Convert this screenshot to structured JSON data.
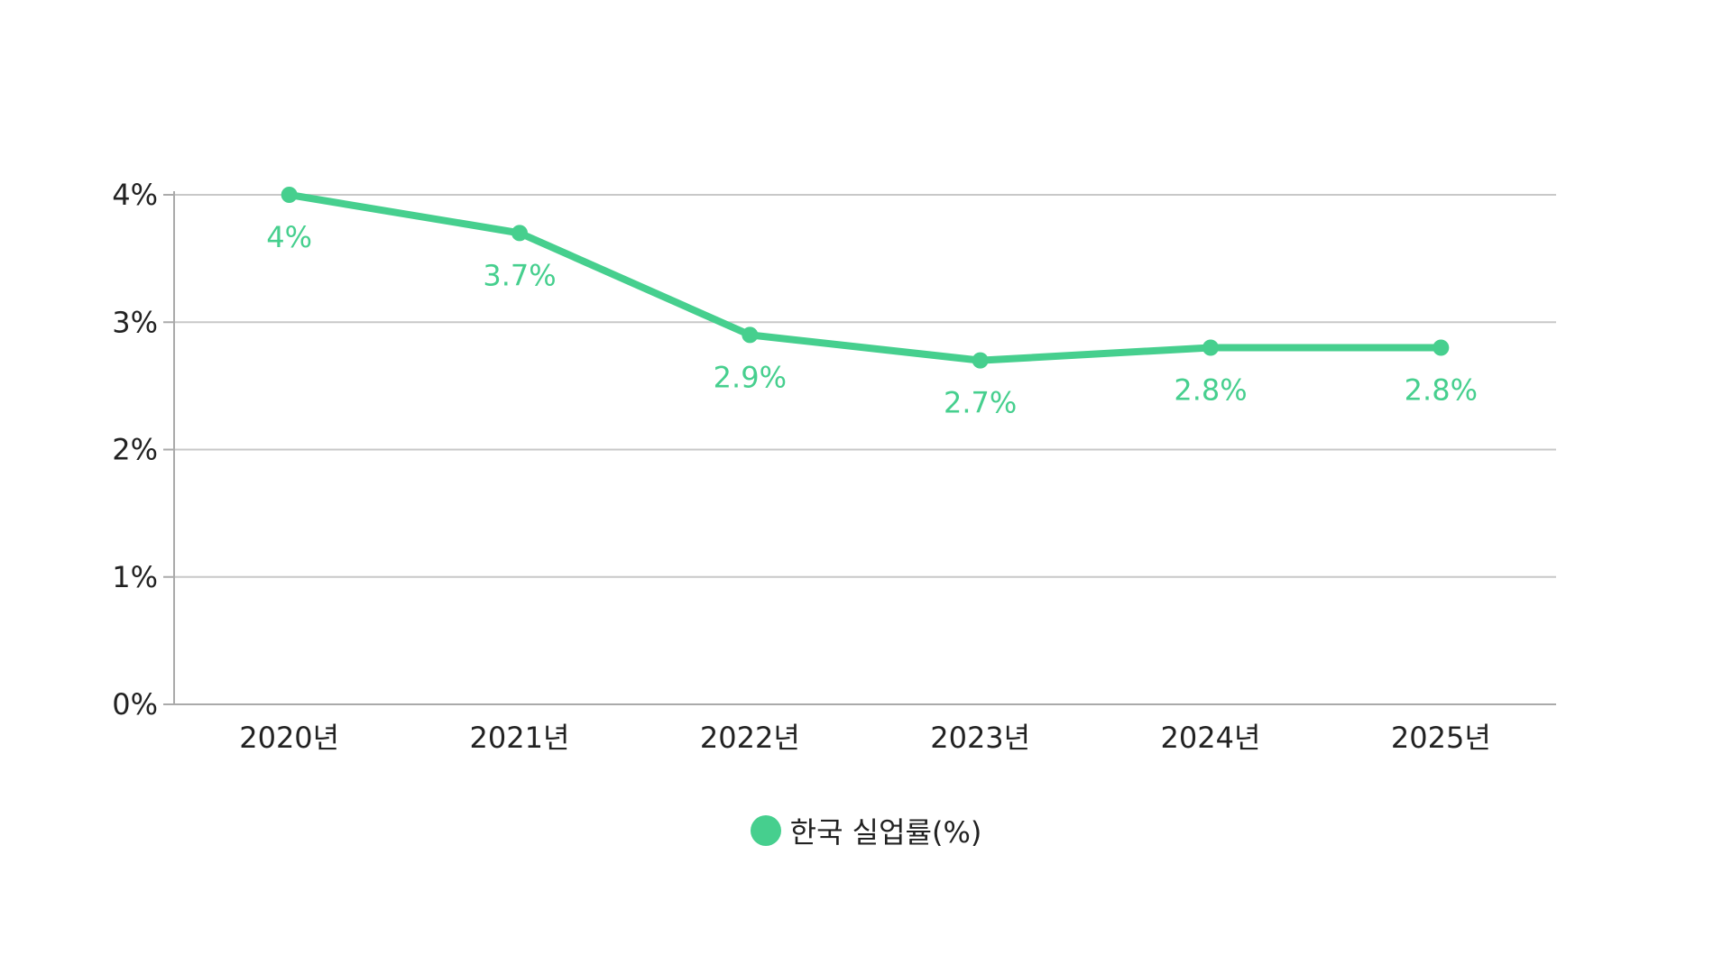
{
  "chart_data": {
    "type": "line",
    "categories": [
      "2020년",
      "2021년",
      "2022년",
      "2023년",
      "2024년",
      "2025년"
    ],
    "series": [
      {
        "name": "한국 실업률(%)",
        "values": [
          4.0,
          3.7,
          2.9,
          2.7,
          2.8,
          2.8
        ],
        "data_labels": [
          "4%",
          "3.7%",
          "2.9%",
          "2.7%",
          "2.8%",
          "2.8%"
        ]
      }
    ],
    "y_ticks": [
      0,
      1,
      2,
      3,
      4
    ],
    "y_tick_labels": [
      "0%",
      "1%",
      "2%",
      "3%",
      "4%"
    ],
    "ylim": [
      0,
      4
    ],
    "grid": true,
    "legend_position": "bottom",
    "title": "",
    "xlabel": "",
    "ylabel": "",
    "colors": {
      "series": "#46CF8E",
      "grid": "#C8C8C8",
      "axis": "#AAAAAA",
      "text": "#222222"
    }
  }
}
